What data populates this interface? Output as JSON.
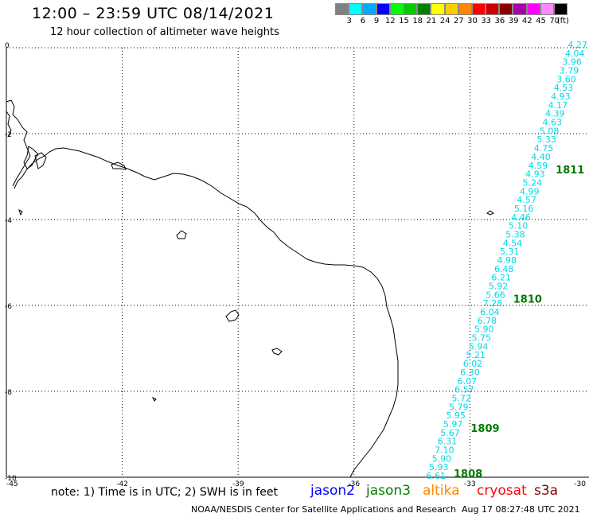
{
  "header": {
    "title": "12:00 – 23:59 UTC 08/14/2021",
    "subtitle": "12 hour collection of altimeter wave heights"
  },
  "legend": {
    "colors": [
      "#808080",
      "#00ffff",
      "#00aaff",
      "#0000ff",
      "#00ff00",
      "#00cc00",
      "#008000",
      "#ffff00",
      "#ffcc00",
      "#ff8800",
      "#ff0000",
      "#cc0000",
      "#880000",
      "#aa00aa",
      "#ff00ff",
      "#ff88ff",
      "#000000"
    ],
    "labels": [
      "3",
      "6",
      "9",
      "12",
      "15",
      "18",
      "21",
      "24",
      "27",
      "30",
      "33",
      "36",
      "39",
      "42",
      "45",
      "70",
      "(ft)"
    ]
  },
  "map": {
    "lon_range": [
      -45,
      -30
    ],
    "lat_range": [
      -10,
      0
    ],
    "x_ticks": [
      "-45",
      "-42",
      "-39",
      "-36",
      "-33",
      "-30"
    ],
    "y_ticks": [
      "0",
      "-2",
      "-4",
      "-6",
      "-8",
      "-10"
    ],
    "grid": true
  },
  "track": {
    "color": "#00d8e8",
    "swh_values": [
      "4.27",
      "4.04",
      "3.96",
      "3.79",
      "3.60",
      "4.53",
      "4.93",
      "4.17",
      "4.39",
      "4.63",
      "5.08",
      "5.33",
      "4.75",
      "4.40",
      "4.59",
      "4.93",
      "5.24",
      "4.99",
      "4.57",
      "5.16",
      "4.46",
      "5.10",
      "5.38",
      "4.54",
      "5.31",
      "4.98",
      "6.48",
      "6.21",
      "5.92",
      "5.66",
      "7.28",
      "6.04",
      "6.78",
      "5.90",
      "5.75",
      "5.94",
      "5.21",
      "6.02",
      "6.30",
      "6.07",
      "6.57",
      "5.72",
      "5.79",
      "5.95",
      "5.97",
      "5.67",
      "6.31",
      "7.10",
      "5.90",
      "5.93",
      "6.61"
    ],
    "time_labels": [
      {
        "text": "1811",
        "after_index": 14
      },
      {
        "text": "1810",
        "after_index": 29
      },
      {
        "text": "1809",
        "after_index": 44
      },
      {
        "text": "1808",
        "after_index": 50
      }
    ],
    "time_color": "#007a00"
  },
  "footer": {
    "note": "note:  1) Time is in UTC;  2) SWH is in feet",
    "satellites": [
      {
        "name": "jason2",
        "color": "#0000ff"
      },
      {
        "name": "jason3",
        "color": "#008000"
      },
      {
        "name": "altika",
        "color": "#ff8800"
      },
      {
        "name": "cryosat",
        "color": "#ff0000"
      },
      {
        "name": "s3a",
        "color": "#880000"
      }
    ],
    "credit": "NOAA/NESDIS Center for Satellite Applications and Research",
    "timestamp": "Aug 17 08:27:48 UTC 2021"
  }
}
